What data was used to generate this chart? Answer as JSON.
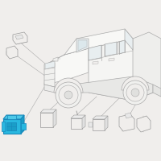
{
  "bg": "#f0eeec",
  "lc": "#aaaaaa",
  "lw": 0.5,
  "hlc": "#29b8e0",
  "hlw": 0.8,
  "parts_lc": "#999999",
  "line_c": "#aaaaaa"
}
